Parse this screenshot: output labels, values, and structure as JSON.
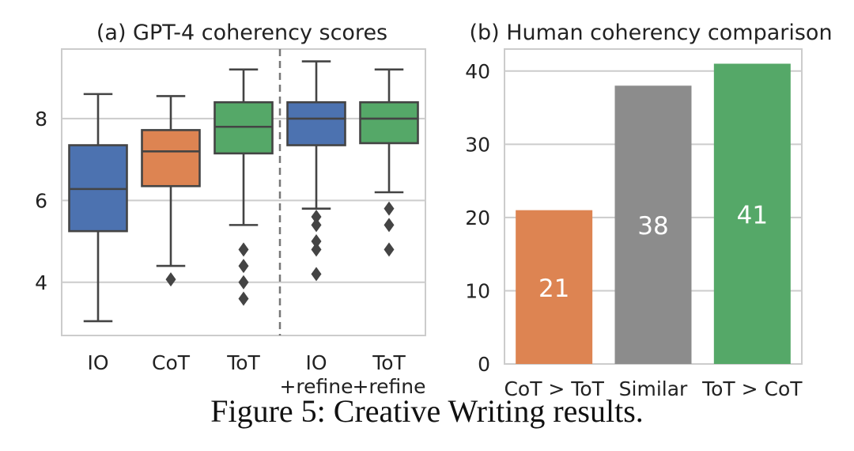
{
  "caption": "Figure 5: Creative Writing results.",
  "chart_data": [
    {
      "type": "box",
      "title": "(a) GPT-4 coherency scores",
      "categories": [
        "IO",
        "CoT",
        "ToT",
        "IO\n+refine",
        "ToT\n+refine"
      ],
      "yticks": [
        4,
        6,
        8
      ],
      "ylim": [
        2.7,
        9.7
      ],
      "grid": true,
      "divider_after_category": 3,
      "colors": [
        "#4c72b0",
        "#dd8452",
        "#55a868",
        "#4c72b0",
        "#55a868"
      ],
      "boxes": [
        {
          "whislo": 3.05,
          "q1": 5.25,
          "med": 6.28,
          "q3": 7.35,
          "whishi": 8.6,
          "fliers": []
        },
        {
          "whislo": 4.4,
          "q1": 6.35,
          "med": 7.2,
          "q3": 7.72,
          "whishi": 8.55,
          "fliers": [
            4.07
          ]
        },
        {
          "whislo": 5.4,
          "q1": 7.15,
          "med": 7.8,
          "q3": 8.4,
          "whishi": 9.2,
          "fliers": [
            4.8,
            4.4,
            4.0,
            3.6
          ]
        },
        {
          "whislo": 5.8,
          "q1": 7.35,
          "med": 8.0,
          "q3": 8.4,
          "whishi": 9.4,
          "fliers": [
            5.6,
            5.4,
            5.0,
            4.8,
            4.2
          ]
        },
        {
          "whislo": 6.2,
          "q1": 7.4,
          "med": 8.0,
          "q3": 8.4,
          "whishi": 9.2,
          "fliers": [
            5.8,
            5.4,
            4.8
          ]
        }
      ]
    },
    {
      "type": "bar",
      "title": "(b) Human coherency comparison",
      "categories": [
        "CoT > ToT",
        "Similar",
        "ToT > CoT"
      ],
      "values": [
        21,
        38,
        41
      ],
      "colors": [
        "#dd8452",
        "#8c8c8c",
        "#55a868"
      ],
      "yticks": [
        0,
        10,
        20,
        30,
        40
      ],
      "ylim": [
        0,
        43
      ],
      "grid": true
    }
  ]
}
